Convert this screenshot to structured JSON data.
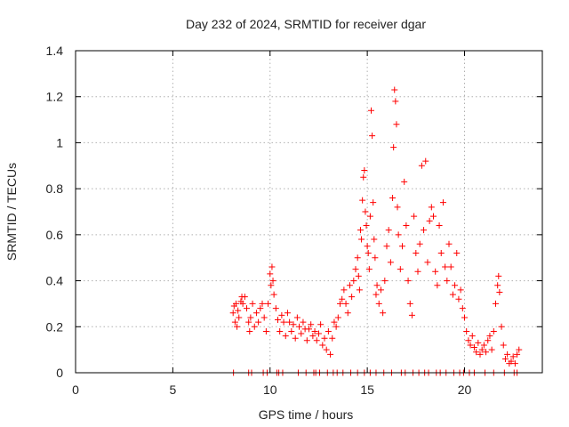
{
  "chart_data": {
    "type": "scatter",
    "title": "Day 232 of 2024, SRMTID for receiver dgar",
    "xlabel": "GPS time / hours",
    "ylabel": "SRMTID / TECUs",
    "xlim": [
      0,
      24
    ],
    "ylim": [
      0,
      1.4
    ],
    "xticks": [
      0,
      5,
      10,
      15,
      20
    ],
    "xtick_labels": [
      "0",
      "5",
      "10",
      "15",
      "20"
    ],
    "yticks": [
      0,
      0.2,
      0.4,
      0.6,
      0.8,
      1.0,
      1.2,
      1.4
    ],
    "ytick_labels": [
      "0",
      "0.2",
      "0.4",
      "0.6",
      "0.8",
      "1",
      "1.2",
      "1.4"
    ],
    "grid": true,
    "marker": "+",
    "marker_color": "#ff0000",
    "series": [
      {
        "name": "SRMTID",
        "points": [
          [
            8.1,
            0.26
          ],
          [
            8.15,
            0.29
          ],
          [
            8.2,
            0.22
          ],
          [
            8.25,
            0.3
          ],
          [
            8.3,
            0.2
          ],
          [
            8.35,
            0.27
          ],
          [
            8.4,
            0.24
          ],
          [
            8.5,
            0.31
          ],
          [
            8.55,
            0.33
          ],
          [
            8.6,
            0.3
          ],
          [
            8.7,
            0.33
          ],
          [
            8.8,
            0.28
          ],
          [
            8.9,
            0.22
          ],
          [
            8.95,
            0.18
          ],
          [
            9.0,
            0.24
          ],
          [
            9.1,
            0.3
          ],
          [
            9.2,
            0.2
          ],
          [
            9.3,
            0.26
          ],
          [
            9.4,
            0.22
          ],
          [
            9.5,
            0.28
          ],
          [
            9.6,
            0.3
          ],
          [
            9.7,
            0.24
          ],
          [
            9.8,
            0.18
          ],
          [
            9.9,
            0.3
          ],
          [
            10.0,
            0.43
          ],
          [
            10.05,
            0.38
          ],
          [
            10.1,
            0.46
          ],
          [
            10.15,
            0.4
          ],
          [
            10.2,
            0.34
          ],
          [
            10.3,
            0.28
          ],
          [
            10.4,
            0.23
          ],
          [
            10.5,
            0.18
          ],
          [
            10.6,
            0.25
          ],
          [
            10.7,
            0.22
          ],
          [
            10.8,
            0.16
          ],
          [
            10.9,
            0.26
          ],
          [
            11.0,
            0.22
          ],
          [
            11.1,
            0.18
          ],
          [
            11.2,
            0.21
          ],
          [
            11.3,
            0.15
          ],
          [
            11.4,
            0.24
          ],
          [
            11.5,
            0.2
          ],
          [
            11.6,
            0.17
          ],
          [
            11.7,
            0.22
          ],
          [
            11.8,
            0.19
          ],
          [
            11.9,
            0.14
          ],
          [
            12.0,
            0.19
          ],
          [
            12.1,
            0.21
          ],
          [
            12.2,
            0.16
          ],
          [
            12.3,
            0.18
          ],
          [
            12.4,
            0.14
          ],
          [
            12.5,
            0.17
          ],
          [
            12.6,
            0.21
          ],
          [
            12.7,
            0.12
          ],
          [
            12.8,
            0.15
          ],
          [
            12.9,
            0.1
          ],
          [
            13.0,
            0.18
          ],
          [
            13.1,
            0.08
          ],
          [
            13.2,
            0.15
          ],
          [
            13.3,
            0.22
          ],
          [
            13.4,
            0.2
          ],
          [
            13.5,
            0.24
          ],
          [
            13.6,
            0.3
          ],
          [
            13.7,
            0.32
          ],
          [
            13.8,
            0.36
          ],
          [
            13.9,
            0.3
          ],
          [
            14.0,
            0.26
          ],
          [
            14.1,
            0.38
          ],
          [
            14.2,
            0.33
          ],
          [
            14.3,
            0.4
          ],
          [
            14.4,
            0.45
          ],
          [
            14.5,
            0.5
          ],
          [
            14.55,
            0.42
          ],
          [
            14.6,
            0.36
          ],
          [
            14.65,
            0.62
          ],
          [
            14.7,
            0.58
          ],
          [
            14.75,
            0.75
          ],
          [
            14.8,
            0.85
          ],
          [
            14.85,
            0.88
          ],
          [
            14.9,
            0.7
          ],
          [
            14.95,
            0.64
          ],
          [
            15.0,
            0.55
          ],
          [
            15.05,
            0.52
          ],
          [
            15.1,
            0.45
          ],
          [
            15.15,
            0.68
          ],
          [
            15.2,
            1.14
          ],
          [
            15.25,
            1.03
          ],
          [
            15.3,
            0.74
          ],
          [
            15.35,
            0.58
          ],
          [
            15.4,
            0.5
          ],
          [
            15.45,
            0.34
          ],
          [
            15.5,
            0.38
          ],
          [
            15.6,
            0.3
          ],
          [
            15.7,
            0.36
          ],
          [
            15.8,
            0.26
          ],
          [
            15.9,
            0.4
          ],
          [
            16.0,
            0.55
          ],
          [
            16.1,
            0.62
          ],
          [
            16.2,
            0.48
          ],
          [
            16.3,
            0.76
          ],
          [
            16.35,
            0.98
          ],
          [
            16.4,
            1.23
          ],
          [
            16.45,
            1.18
          ],
          [
            16.5,
            1.08
          ],
          [
            16.55,
            0.72
          ],
          [
            16.6,
            0.6
          ],
          [
            16.7,
            0.45
          ],
          [
            16.8,
            0.55
          ],
          [
            16.9,
            0.83
          ],
          [
            17.0,
            0.64
          ],
          [
            17.1,
            0.4
          ],
          [
            17.2,
            0.3
          ],
          [
            17.3,
            0.25
          ],
          [
            17.4,
            0.68
          ],
          [
            17.5,
            0.52
          ],
          [
            17.6,
            0.44
          ],
          [
            17.7,
            0.56
          ],
          [
            17.8,
            0.9
          ],
          [
            17.9,
            0.62
          ],
          [
            18.0,
            0.92
          ],
          [
            18.1,
            0.48
          ],
          [
            18.2,
            0.66
          ],
          [
            18.3,
            0.72
          ],
          [
            18.4,
            0.68
          ],
          [
            18.5,
            0.44
          ],
          [
            18.6,
            0.38
          ],
          [
            18.7,
            0.64
          ],
          [
            18.8,
            0.52
          ],
          [
            18.9,
            0.74
          ],
          [
            19.0,
            0.46
          ],
          [
            19.1,
            0.4
          ],
          [
            19.2,
            0.56
          ],
          [
            19.3,
            0.46
          ],
          [
            19.4,
            0.34
          ],
          [
            19.5,
            0.38
          ],
          [
            19.6,
            0.52
          ],
          [
            19.7,
            0.32
          ],
          [
            19.8,
            0.36
          ],
          [
            19.9,
            0.28
          ],
          [
            20.0,
            0.24
          ],
          [
            20.1,
            0.18
          ],
          [
            20.2,
            0.14
          ],
          [
            20.3,
            0.12
          ],
          [
            20.4,
            0.16
          ],
          [
            20.5,
            0.11
          ],
          [
            20.6,
            0.09
          ],
          [
            20.7,
            0.13
          ],
          [
            20.8,
            0.08
          ],
          [
            20.9,
            0.1
          ],
          [
            21.0,
            0.12
          ],
          [
            21.1,
            0.09
          ],
          [
            21.2,
            0.14
          ],
          [
            21.3,
            0.16
          ],
          [
            21.4,
            0.1
          ],
          [
            21.5,
            0.18
          ],
          [
            21.6,
            0.3
          ],
          [
            21.7,
            0.38
          ],
          [
            21.75,
            0.42
          ],
          [
            21.8,
            0.35
          ],
          [
            21.9,
            0.2
          ],
          [
            22.0,
            0.12
          ],
          [
            22.1,
            0.06
          ],
          [
            22.2,
            0.08
          ],
          [
            22.3,
            0.04
          ],
          [
            22.4,
            0.05
          ],
          [
            22.5,
            0.07
          ],
          [
            22.6,
            0.04
          ],
          [
            22.7,
            0.08
          ],
          [
            22.8,
            0.1
          ],
          [
            8.12,
            0.0
          ],
          [
            8.9,
            0.0
          ],
          [
            9.05,
            0.0
          ],
          [
            9.65,
            0.0
          ],
          [
            9.85,
            0.0
          ],
          [
            10.35,
            0.0
          ],
          [
            10.45,
            0.0
          ],
          [
            10.65,
            0.0
          ],
          [
            11.45,
            0.0
          ],
          [
            11.85,
            0.0
          ],
          [
            12.25,
            0.0
          ],
          [
            12.35,
            0.0
          ],
          [
            12.55,
            0.0
          ],
          [
            12.95,
            0.0
          ],
          [
            13.25,
            0.0
          ],
          [
            13.45,
            0.0
          ],
          [
            13.75,
            0.0
          ],
          [
            14.15,
            0.0
          ],
          [
            14.5,
            0.0
          ],
          [
            14.85,
            0.0
          ],
          [
            15.15,
            0.0
          ],
          [
            15.45,
            0.0
          ],
          [
            15.85,
            0.0
          ],
          [
            16.25,
            0.0
          ],
          [
            16.75,
            0.0
          ],
          [
            16.95,
            0.0
          ],
          [
            17.35,
            0.0
          ],
          [
            17.65,
            0.0
          ],
          [
            17.95,
            0.0
          ],
          [
            18.15,
            0.0
          ],
          [
            18.55,
            0.0
          ],
          [
            18.75,
            0.0
          ],
          [
            19.05,
            0.0
          ],
          [
            19.45,
            0.0
          ],
          [
            19.75,
            0.0
          ],
          [
            19.95,
            0.0
          ],
          [
            20.25,
            0.0
          ],
          [
            20.5,
            0.0
          ],
          [
            21.05,
            0.0
          ],
          [
            21.5,
            0.0
          ],
          [
            22.05,
            0.0
          ],
          [
            22.55,
            0.0
          ],
          [
            22.7,
            0.0
          ]
        ]
      }
    ]
  }
}
